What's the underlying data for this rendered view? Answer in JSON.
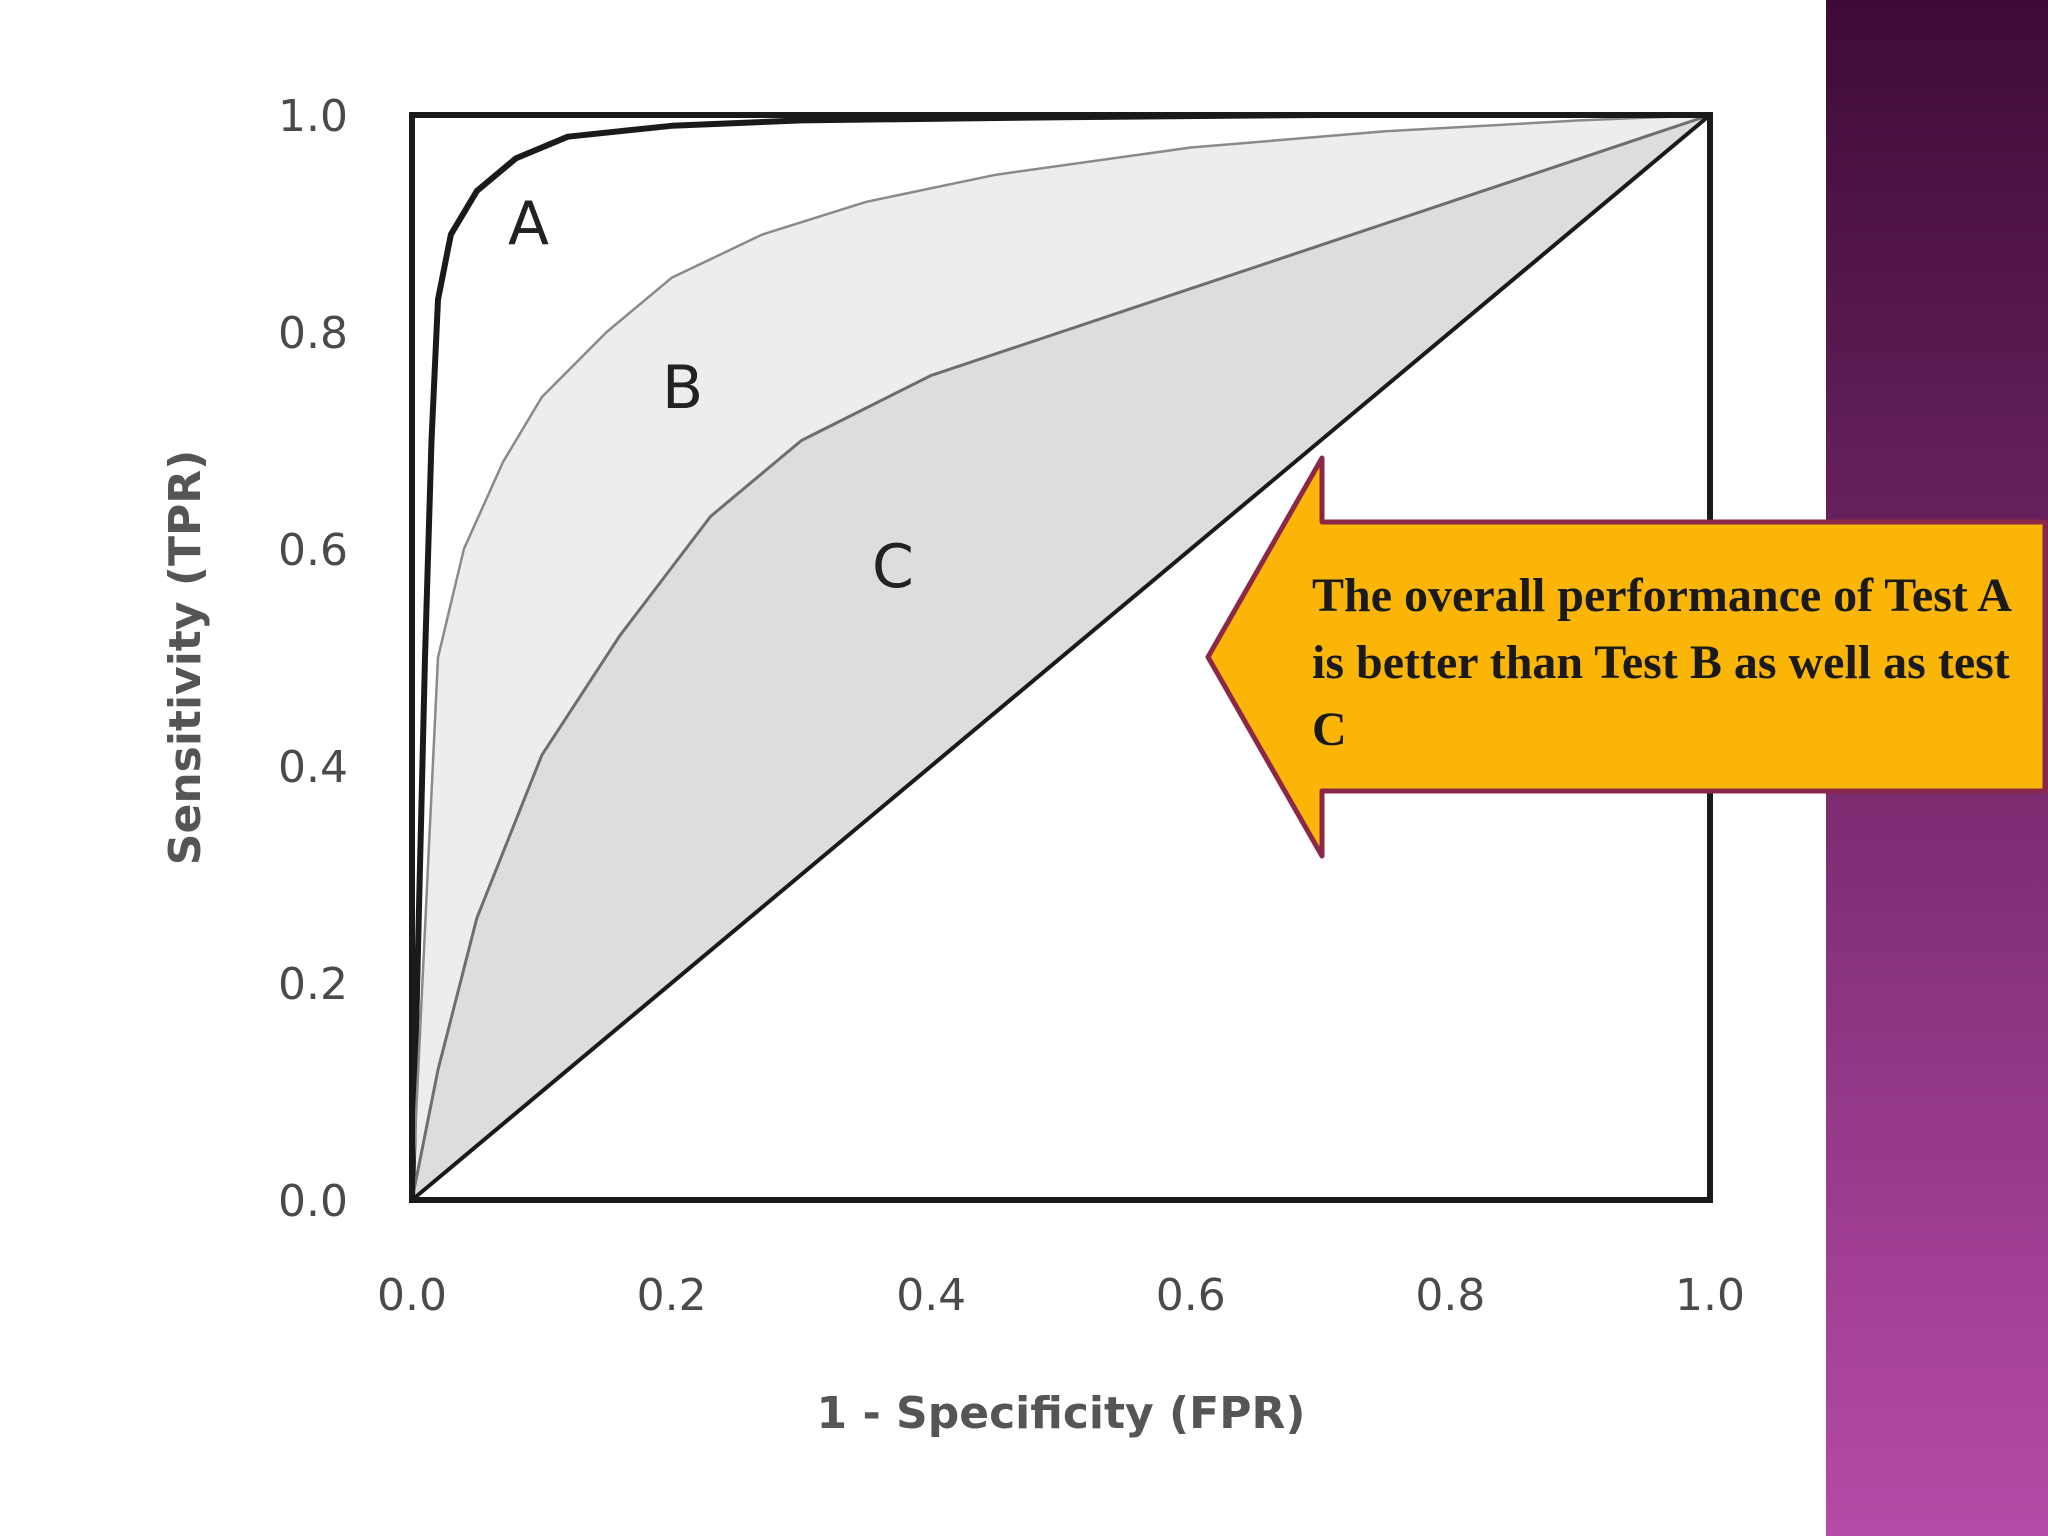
{
  "chart_data": {
    "type": "line",
    "xlabel": "1 - Specificity (FPR)",
    "ylabel": "Sensitivity (TPR)",
    "xlim": [
      0,
      1
    ],
    "ylim": [
      0,
      1
    ],
    "x_ticks": [
      "0.0",
      "0.2",
      "0.4",
      "0.6",
      "0.8",
      "1.0"
    ],
    "y_ticks": [
      "0.0",
      "0.2",
      "0.4",
      "0.6",
      "0.8",
      "1.0"
    ],
    "grid": false,
    "series": [
      {
        "name": "A",
        "x": [
          0,
          0.01,
          0.015,
          0.02,
          0.03,
          0.05,
          0.08,
          0.12,
          0.2,
          0.3,
          0.5,
          0.7,
          1.0
        ],
        "y": [
          0,
          0.5,
          0.7,
          0.83,
          0.89,
          0.93,
          0.96,
          0.98,
          0.99,
          0.995,
          0.998,
          1.0,
          1.0
        ]
      },
      {
        "name": "B",
        "x": [
          0,
          0.02,
          0.04,
          0.07,
          0.1,
          0.15,
          0.2,
          0.27,
          0.35,
          0.45,
          0.6,
          0.75,
          0.9,
          1.0
        ],
        "y": [
          0,
          0.5,
          0.6,
          0.68,
          0.74,
          0.8,
          0.85,
          0.89,
          0.92,
          0.945,
          0.97,
          0.985,
          0.995,
          1.0
        ]
      },
      {
        "name": "C",
        "x": [
          0,
          0.02,
          0.05,
          0.1,
          0.16,
          0.23,
          0.3,
          0.4,
          0.5,
          0.6,
          0.7,
          0.8,
          0.9,
          1.0
        ],
        "y": [
          0,
          0.12,
          0.26,
          0.41,
          0.52,
          0.63,
          0.7,
          0.76,
          0.8,
          0.84,
          0.88,
          0.92,
          0.96,
          1.0
        ]
      },
      {
        "name": "",
        "x": [
          0,
          1
        ],
        "y": [
          0,
          1
        ]
      }
    ],
    "annotations": [
      "A",
      "B",
      "C"
    ]
  },
  "callout": {
    "text": "The overall performance of Test A is better than Test B as well as test C",
    "fill_color": "#fbb507",
    "border_color": "#8a2846"
  },
  "colors": {
    "sidebar_top": "#3e0b36",
    "sidebar_bottom": "#b64aa8",
    "region_light": "#ededed",
    "region_mid": "#dddddf"
  }
}
